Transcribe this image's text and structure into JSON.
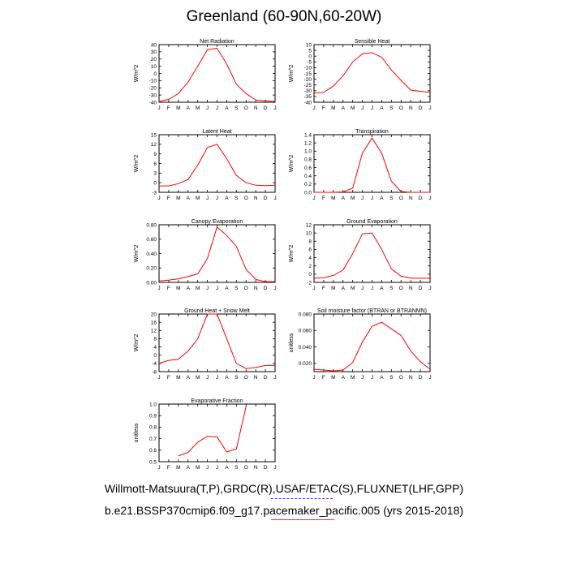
{
  "page": {
    "title": "Greenland (60-90N,60-20W)",
    "footer_sources": "Willmott-Matsuura(T,P),GRDC(R),USAF/ETAC(S),FLUXNET(LHF,GPP)",
    "footer_case": "b.e21.BSSP370cmip6.f09_g17.pacemaker_pacific.005 (yrs 2015-2018)"
  },
  "colors": {
    "series": "#ff0000",
    "frame": "#000000"
  },
  "chart_data": [
    {
      "type": "line",
      "title": "Net Radiation",
      "ylabel": "W/m^2",
      "categories": [
        "J",
        "F",
        "M",
        "A",
        "M",
        "J",
        "J",
        "A",
        "S",
        "O",
        "N",
        "D",
        "J"
      ],
      "ylim": [
        -40,
        40
      ],
      "yticks": [
        -40,
        -30,
        -20,
        -10,
        0,
        10,
        20,
        30,
        40
      ],
      "ytick_labels": [
        "-40",
        "-30",
        "-20",
        "-10",
        "0",
        "10",
        "20",
        "30",
        "40"
      ],
      "x": [
        1,
        2,
        3,
        4,
        5,
        6,
        7,
        8,
        9,
        10,
        11,
        12,
        13
      ],
      "values": [
        -39,
        -36,
        -28,
        -12,
        10,
        33,
        35,
        13,
        -15,
        -28,
        -37,
        -38,
        -39
      ]
    },
    {
      "type": "line",
      "title": "Sensible Heat",
      "ylabel": "W/m^2",
      "categories": [
        "J",
        "F",
        "M",
        "A",
        "M",
        "J",
        "J",
        "A",
        "S",
        "O",
        "N",
        "D",
        "J"
      ],
      "ylim": [
        -40,
        10
      ],
      "yticks": [
        -40,
        -35,
        -30,
        -25,
        -20,
        -15,
        -10,
        -5,
        0,
        5,
        10
      ],
      "ytick_labels": [
        "-40",
        "-35",
        "-30",
        "-25",
        "-20",
        "-15",
        "-10",
        "-5",
        "0",
        "5",
        "10"
      ],
      "x": [
        1,
        2,
        3,
        4,
        5,
        6,
        7,
        8,
        9,
        10,
        11,
        12,
        13
      ],
      "values": [
        -32,
        -31.5,
        -26,
        -17,
        -5,
        2,
        3,
        -1,
        -12,
        -21,
        -29.5,
        -30.5,
        -31.5
      ]
    },
    {
      "type": "line",
      "title": "Latent Heat",
      "ylabel": "W/m^2",
      "categories": [
        "J",
        "F",
        "M",
        "A",
        "M",
        "J",
        "J",
        "A",
        "S",
        "O",
        "N",
        "D",
        "J"
      ],
      "ylim": [
        -3,
        15
      ],
      "yticks": [
        -3,
        0,
        3,
        6,
        9,
        12,
        15
      ],
      "ytick_labels": [
        "-3",
        "0",
        "3",
        "6",
        "9",
        "12",
        "15"
      ],
      "x": [
        1,
        2,
        3,
        4,
        5,
        6,
        7,
        8,
        9,
        10,
        11,
        12,
        13
      ],
      "values": [
        -1,
        -1,
        -0.3,
        1,
        5.5,
        11,
        12,
        7.5,
        2.3,
        0,
        -0.8,
        -0.9,
        -0.8
      ]
    },
    {
      "type": "line",
      "title": "Transpiration",
      "ylabel": "W/m^2",
      "categories": [
        "J",
        "F",
        "M",
        "A",
        "M",
        "J",
        "J",
        "A",
        "S",
        "O",
        "N",
        "D",
        "J"
      ],
      "ylim": [
        0,
        1.4
      ],
      "yticks": [
        0,
        0.2,
        0.4,
        0.6,
        0.8,
        1.0,
        1.2,
        1.4
      ],
      "ytick_labels": [
        "0.0",
        "0.2",
        "0.4",
        "0.6",
        "0.8",
        "1.0",
        "1.2",
        "1.4"
      ],
      "x": [
        1,
        2,
        3,
        4,
        5,
        6,
        7,
        8,
        9,
        10,
        11,
        12,
        13
      ],
      "values": [
        0,
        0,
        0,
        0.01,
        0.1,
        0.95,
        1.32,
        0.95,
        0.27,
        0.02,
        0,
        0,
        0
      ]
    },
    {
      "type": "line",
      "title": "Canopy Evaporation",
      "ylabel": "W/m^2",
      "categories": [
        "J",
        "F",
        "M",
        "A",
        "M",
        "J",
        "J",
        "A",
        "S",
        "O",
        "N",
        "D",
        "J"
      ],
      "ylim": [
        0,
        0.8
      ],
      "yticks": [
        0,
        0.2,
        0.4,
        0.6,
        0.8
      ],
      "ytick_labels": [
        "0.00",
        "0.20",
        "0.40",
        "0.60",
        "0.80"
      ],
      "x": [
        1,
        2,
        3,
        4,
        5,
        6,
        7,
        8,
        9,
        10,
        11,
        12,
        13
      ],
      "values": [
        0.02,
        0.03,
        0.05,
        0.08,
        0.12,
        0.33,
        0.77,
        0.65,
        0.5,
        0.18,
        0.04,
        0.01,
        0.01
      ]
    },
    {
      "type": "line",
      "title": "Ground Evaporation",
      "ylabel": "W/m^2",
      "categories": [
        "J",
        "F",
        "M",
        "A",
        "M",
        "J",
        "J",
        "A",
        "S",
        "O",
        "N",
        "D",
        "J"
      ],
      "ylim": [
        -2,
        12
      ],
      "yticks": [
        -2,
        0,
        2,
        4,
        6,
        8,
        10,
        12
      ],
      "ytick_labels": [
        "-2",
        "0",
        "2",
        "4",
        "6",
        "8",
        "10",
        "12"
      ],
      "x": [
        1,
        2,
        3,
        4,
        5,
        6,
        7,
        8,
        9,
        10,
        11,
        12,
        13
      ],
      "values": [
        -1,
        -0.9,
        -0.3,
        1,
        5,
        9.8,
        10,
        6,
        1.3,
        -0.5,
        -1,
        -1,
        -1
      ]
    },
    {
      "type": "line",
      "title": "Ground Heat + Snow Melt",
      "ylabel": "W/m^2",
      "categories": [
        "J",
        "F",
        "M",
        "A",
        "M",
        "J",
        "J",
        "A",
        "S",
        "O",
        "N",
        "D",
        "J"
      ],
      "ylim": [
        -8,
        20
      ],
      "yticks": [
        -8,
        -4,
        0,
        4,
        8,
        12,
        16,
        20
      ],
      "ytick_labels": [
        "-8",
        "-4",
        "0",
        "4",
        "8",
        "12",
        "16",
        "20"
      ],
      "x": [
        1,
        2,
        3,
        4,
        5,
        6,
        7,
        8,
        9,
        10,
        11,
        12,
        13
      ],
      "values": [
        -4,
        -2.5,
        -2,
        2,
        8,
        20,
        20,
        8,
        -4,
        -6.5,
        -6,
        -5,
        -5
      ]
    },
    {
      "type": "line",
      "title": "Soil moisture factor (BTRAN or BTRANMN)",
      "ylabel": "unitless",
      "categories": [
        "J",
        "F",
        "M",
        "A",
        "M",
        "J",
        "J",
        "A",
        "S",
        "O",
        "N",
        "D",
        "J"
      ],
      "ylim": [
        0.01,
        0.08
      ],
      "yticks": [
        0.02,
        0.04,
        0.06,
        0.08
      ],
      "ytick_labels": [
        "0.020",
        "0.040",
        "0.060",
        "0.080"
      ],
      "x": [
        1,
        2,
        3,
        4,
        5,
        6,
        7,
        8,
        9,
        10,
        11,
        12,
        13
      ],
      "values": [
        0.013,
        0.012,
        0.011,
        0.012,
        0.021,
        0.046,
        0.065,
        0.07,
        0.062,
        0.054,
        0.035,
        0.022,
        0.013
      ]
    },
    {
      "type": "line",
      "title": "Evaporative Fraction",
      "ylabel": "unitless",
      "categories": [
        "J",
        "F",
        "M",
        "A",
        "M",
        "J",
        "J",
        "A",
        "S",
        "O",
        "N",
        "D",
        "J"
      ],
      "ylim": [
        0.5,
        1.0
      ],
      "yticks": [
        0.5,
        0.6,
        0.7,
        0.8,
        0.9,
        1.0
      ],
      "ytick_labels": [
        "0.5",
        "0.6",
        "0.7",
        "0.8",
        "0.9",
        "1.0"
      ],
      "x": [
        3,
        4,
        5,
        6,
        7,
        8,
        9,
        10
      ],
      "values": [
        0.55,
        0.58,
        0.67,
        0.72,
        0.715,
        0.585,
        0.61,
        0.98
      ]
    }
  ]
}
